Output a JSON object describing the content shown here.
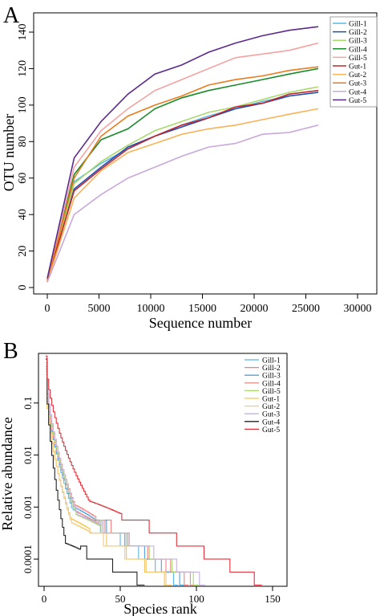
{
  "chart_data": [
    {
      "panel_label": "A",
      "type": "line",
      "title": "",
      "xlabel": "Sequence number",
      "ylabel": "OTU number",
      "xlim": [
        0,
        30000
      ],
      "ylim": [
        0,
        140
      ],
      "x_ticks": [
        0,
        5000,
        10000,
        15000,
        20000,
        25000,
        30000
      ],
      "y_ticks": [
        0,
        20,
        40,
        60,
        80,
        100,
        120,
        140
      ],
      "grid": false,
      "legend_position": "top-right",
      "x": [
        0,
        2600,
        5200,
        7800,
        10400,
        13000,
        15600,
        18200,
        20800,
        23400,
        26200
      ],
      "series": [
        {
          "name": "Gill-1",
          "color": "#5bb8e8",
          "values": [
            3,
            58,
            68,
            76,
            83,
            89,
            94,
            98,
            102,
            105,
            107
          ]
        },
        {
          "name": "Gill-2",
          "color": "#1f4fb4",
          "values": [
            3,
            54,
            66,
            77,
            83,
            88,
            93,
            98,
            101,
            105,
            107
          ]
        },
        {
          "name": "Gill-3",
          "color": "#a6d96a",
          "values": [
            3,
            57,
            69,
            78,
            86,
            91,
            96,
            99,
            103,
            107,
            110
          ]
        },
        {
          "name": "Gill-4",
          "color": "#1a8a2a",
          "values": [
            4,
            62,
            81,
            87,
            98,
            104,
            108,
            111,
            114,
            117,
            120
          ]
        },
        {
          "name": "Gill-5",
          "color": "#f4a3a3",
          "values": [
            4,
            66,
            86,
            98,
            108,
            114,
            120,
            126,
            128,
            130,
            134
          ]
        },
        {
          "name": "Gut-1",
          "color": "#c0282d",
          "values": [
            4,
            53,
            65,
            76,
            83,
            89,
            93,
            99,
            101,
            106,
            108
          ]
        },
        {
          "name": "Gut-2",
          "color": "#f7b35a",
          "values": [
            3,
            49,
            64,
            74,
            79,
            84,
            87,
            89,
            92,
            95,
            98
          ]
        },
        {
          "name": "Gut-3",
          "color": "#e87c1e",
          "values": [
            4,
            60,
            83,
            94,
            100,
            105,
            111,
            114,
            116,
            119,
            121
          ]
        },
        {
          "name": "Gut-4",
          "color": "#c9a8dc",
          "values": [
            3,
            40,
            51,
            60,
            66,
            72,
            77,
            79,
            84,
            85,
            89
          ]
        },
        {
          "name": "Gut-5",
          "color": "#5b2a8c",
          "values": [
            5,
            71,
            91,
            106,
            117,
            122,
            129,
            134,
            138,
            141,
            143
          ]
        }
      ]
    },
    {
      "panel_label": "B",
      "type": "line",
      "title": "",
      "xlabel": "Species rank",
      "ylabel": "Relative abundance",
      "y_scale": "log",
      "xlim": [
        0,
        150
      ],
      "ylim": [
        3e-05,
        0.9
      ],
      "x_ticks": [
        0,
        50,
        100,
        150
      ],
      "y_ticks": [
        0.1,
        0.01,
        0.001,
        0.0001
      ],
      "y_tick_labels": [
        "0.1",
        "0.01",
        "0.001",
        "0.0001"
      ],
      "grid": false,
      "legend_position": "top-right",
      "series": [
        {
          "name": "Gill-1",
          "color": "#5bb8e8",
          "max_rank": 88,
          "start": 0.45,
          "mid": 0.0009
        },
        {
          "name": "Gill-2",
          "color": "#f08080",
          "max_rank": 95,
          "start": 0.5,
          "mid": 0.0011
        },
        {
          "name": "Gill-3",
          "color": "#56a0d3",
          "max_rank": 92,
          "start": 0.35,
          "mid": 0.001
        },
        {
          "name": "Gill-4",
          "color": "#e89090",
          "max_rank": 100,
          "start": 0.4,
          "mid": 0.0008
        },
        {
          "name": "Gill-5",
          "color": "#a6d96a",
          "max_rank": 102,
          "start": 0.55,
          "mid": 0.0007
        },
        {
          "name": "Gut-1",
          "color": "#f2c45a",
          "max_rank": 82,
          "start": 0.3,
          "mid": 0.0006
        },
        {
          "name": "Gut-2",
          "color": "#f7c97a",
          "max_rank": 84,
          "start": 0.35,
          "mid": 0.0005
        },
        {
          "name": "Gut-3",
          "color": "#c9b0dc",
          "max_rank": 106,
          "start": 0.6,
          "mid": 0.0007
        },
        {
          "name": "Gut-4",
          "color": "#222222",
          "max_rank": 66,
          "start": 0.7,
          "mid": 0.0002
        },
        {
          "name": "Gut-5",
          "color": "#e0303a",
          "max_rank": 143,
          "start": 0.8,
          "mid": 0.0013
        }
      ]
    }
  ]
}
